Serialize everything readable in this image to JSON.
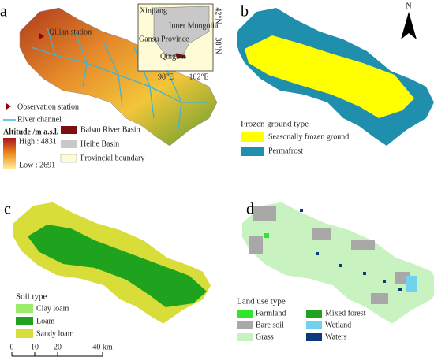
{
  "panel_a": {
    "label": "a",
    "station": "Qilian station",
    "inset": {
      "xinjiang": "Xinjiang",
      "inner_mongolia": "Inner Mongolia",
      "gansu": "Gansu Province",
      "qinghai": "Qinghai",
      "lon_ticks": [
        "98°E",
        "102°E"
      ],
      "lat_ticks": [
        "42°N",
        "38°N"
      ]
    },
    "legend": {
      "station": "Observation station",
      "river": "River channel",
      "altitude_title": "Altitude /m a.s.l.",
      "high": "High : 4831",
      "low": "Low : 2691",
      "babao": "Babao River Basin",
      "heihe": "Heihe Basin",
      "boundary": "Provincial boundary"
    }
  },
  "panel_b": {
    "label": "b",
    "north": "N",
    "legend": {
      "title": "Frozen ground type",
      "items": [
        "Seasonally frozen ground",
        "Permafrost"
      ]
    }
  },
  "panel_c": {
    "label": "c",
    "legend": {
      "title": "Soil type",
      "items": [
        "Clay loam",
        "Loam",
        "Sandy loam"
      ]
    },
    "scale_bar": [
      "0",
      "10",
      "20",
      "40 km"
    ]
  },
  "panel_d": {
    "label": "d",
    "legend": {
      "title": "Land use type",
      "items": [
        "Farmland",
        "Mixed forest",
        "Bare soil",
        "Wetland",
        "Grass",
        "Waters"
      ]
    }
  }
}
